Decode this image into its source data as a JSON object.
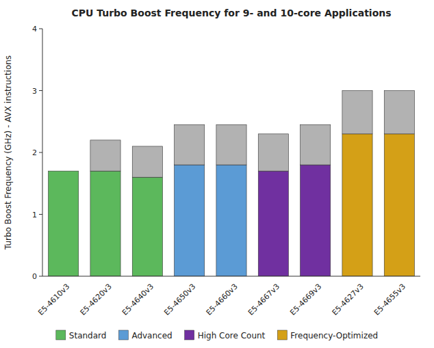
{
  "chart_data": {
    "type": "bar",
    "stacked": true,
    "title": "CPU Turbo Boost Frequency for 9- and 10-core Applications",
    "ylabel": "Turbo Boost Frequency (GHz) - AVX instructions",
    "ylim": [
      0,
      4
    ],
    "yticks": [
      0,
      1,
      2,
      3,
      4
    ],
    "categories": [
      "E5-4610v3",
      "E5-4620v3",
      "E5-4640v3",
      "E5-4650v3",
      "E5-4660v3",
      "E5-4667v3",
      "E5-4669v3",
      "E5-4627v3",
      "E5-4655v3"
    ],
    "series": [
      {
        "values": [
          1.7,
          1.7,
          1.6,
          1.8,
          1.8,
          1.7,
          1.8,
          2.3,
          2.3
        ],
        "colors": [
          "#5cb85c",
          "#5cb85c",
          "#5cb85c",
          "#5b9bd5",
          "#5b9bd5",
          "#7030a0",
          "#7030a0",
          "#d4a017",
          "#d4a017"
        ]
      },
      {
        "values": [
          0.0,
          0.5,
          0.5,
          0.65,
          0.65,
          0.6,
          0.65,
          0.7,
          0.7
        ],
        "color": "#b2b2b2"
      }
    ],
    "legend": "bottom",
    "legend_items": [
      {
        "label": "Standard",
        "color": "#5cb85c"
      },
      {
        "label": "Advanced",
        "color": "#5b9bd5"
      },
      {
        "label": "High Core Count",
        "color": "#7030a0"
      },
      {
        "label": "Frequency-Optimized",
        "color": "#d4a017"
      }
    ]
  }
}
